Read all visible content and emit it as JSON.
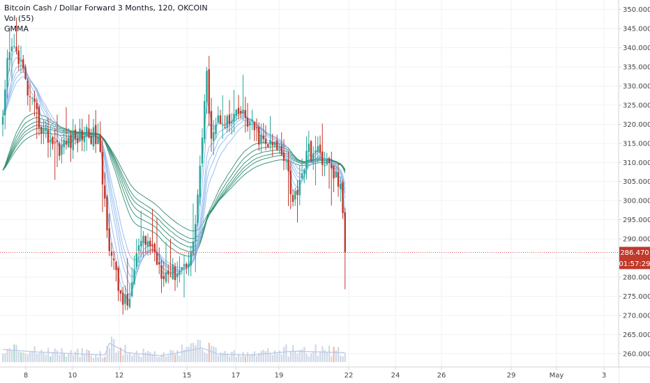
{
  "legend": {
    "symbol_title": "Bitcoin Cash / Dollar Forward 3 Months, 120, OKCOIN",
    "volume_label": "Vol (55)",
    "gmma_label": "GMMA"
  },
  "price_tag": {
    "price": "286.470",
    "countdown": "01:57:29"
  },
  "colors": {
    "up": "#26a69a",
    "down": "#c0392b",
    "short_ema": "#90b8ee",
    "long_ema": "#2e8b70",
    "price_line": "#e05050",
    "volume": "#cfd8e6",
    "grid": "#eef1f5",
    "axis_border": "#d0d3d9"
  },
  "chart_data": {
    "type": "candlestick",
    "ylim": [
      257,
      352
    ],
    "y_ticks": [
      260,
      265,
      270,
      275,
      280,
      285,
      290,
      295,
      300,
      305,
      310,
      315,
      320,
      325,
      330,
      335,
      340,
      345,
      350
    ],
    "x_ticks": [
      "8",
      "10",
      "12",
      "15",
      "17",
      "19",
      "22",
      "24",
      "26",
      "29",
      "May",
      "3"
    ],
    "last_price": 286.47,
    "path_keys": [
      [
        0,
        320
      ],
      [
        2,
        335
      ],
      [
        4,
        340
      ],
      [
        7,
        338
      ],
      [
        12,
        326
      ],
      [
        18,
        318
      ],
      [
        25,
        314
      ],
      [
        31,
        316
      ],
      [
        37,
        318
      ],
      [
        42,
        316
      ],
      [
        47,
        289
      ],
      [
        51,
        277
      ],
      [
        55,
        272
      ],
      [
        60,
        288
      ],
      [
        65,
        289
      ],
      [
        70,
        282
      ],
      [
        75,
        281
      ],
      [
        80,
        283
      ],
      [
        84,
        288
      ],
      [
        87,
        309
      ],
      [
        90,
        332
      ],
      [
        92,
        318
      ],
      [
        96,
        322
      ],
      [
        100,
        320
      ],
      [
        105,
        323
      ],
      [
        110,
        319
      ],
      [
        115,
        315
      ],
      [
        120,
        314
      ],
      [
        125,
        312
      ],
      [
        128,
        299
      ],
      [
        131,
        306
      ],
      [
        135,
        313
      ],
      [
        140,
        312
      ],
      [
        145,
        308
      ],
      [
        149,
        304
      ],
      [
        151,
        286
      ]
    ],
    "volume_keys": [
      [
        0,
        0.8
      ],
      [
        15,
        0.65
      ],
      [
        30,
        0.55
      ],
      [
        45,
        0.45
      ],
      [
        47,
        1.2
      ],
      [
        55,
        0.6
      ],
      [
        70,
        0.4
      ],
      [
        88,
        0.9
      ],
      [
        95,
        0.5
      ],
      [
        110,
        0.45
      ],
      [
        128,
        0.7
      ],
      [
        151,
        0.6
      ]
    ]
  }
}
